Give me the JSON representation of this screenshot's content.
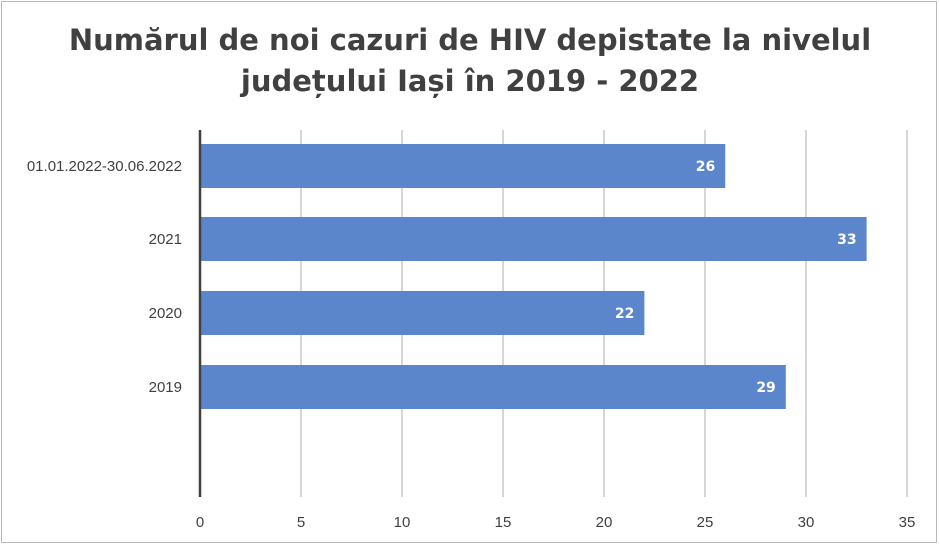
{
  "chart_data": {
    "type": "bar",
    "orientation": "horizontal",
    "title_lines": [
      "Numărul de noi cazuri de HIV depistate la nivelul",
      "județului Iași în 2019 - 2022"
    ],
    "categories": [
      "01.01.2022-30.06.2022",
      "2021",
      "2020",
      "2019"
    ],
    "values": [
      26,
      33,
      22,
      29
    ],
    "xlim": [
      0,
      35
    ],
    "xticks": [
      "0",
      "5",
      "10",
      "15",
      "20",
      "25",
      "30",
      "35"
    ],
    "grid": "vertical",
    "bar_color": "#5b86cc",
    "data_labels": true
  }
}
